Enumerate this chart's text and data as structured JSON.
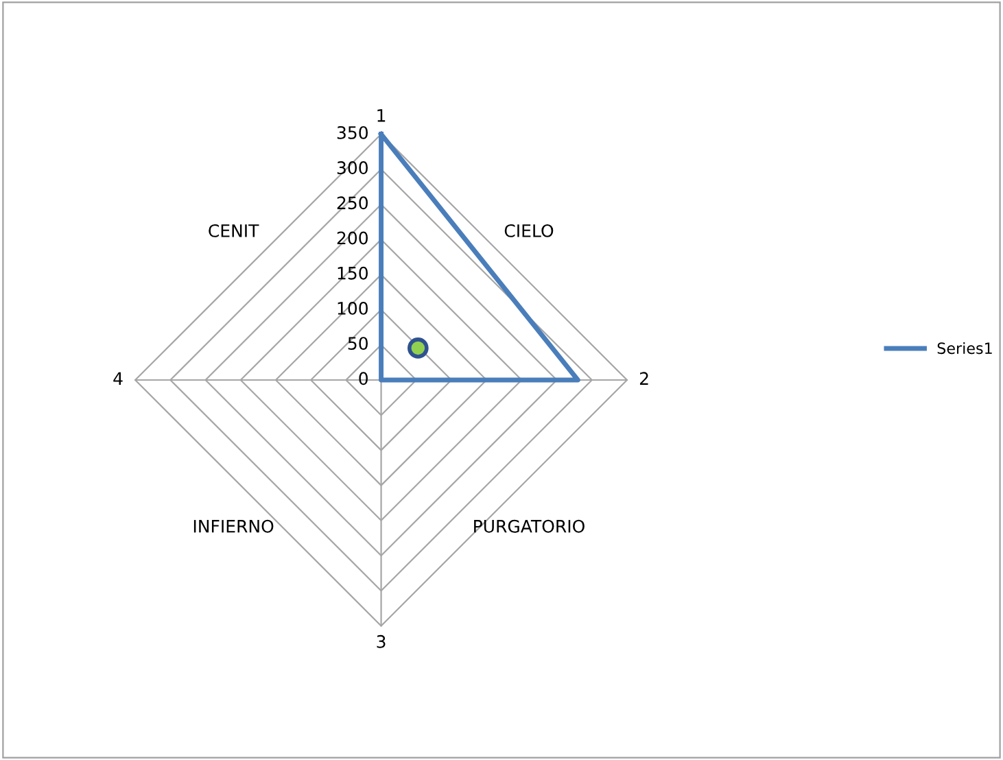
{
  "chart_data": {
    "type": "radar",
    "categories": [
      "1",
      "2",
      "3",
      "4"
    ],
    "series": [
      {
        "name": "Series1",
        "color": "#4a7ebb",
        "values": [
          350,
          280,
          0,
          0
        ]
      }
    ],
    "ylim": [
      0,
      350
    ],
    "yticks": [
      0,
      50,
      100,
      150,
      200,
      250,
      300,
      350
    ],
    "annotations": [
      "CIELO",
      "PURGATORIO",
      "INFIERNO",
      "CENIT"
    ],
    "legend": "right",
    "marker": "none",
    "line_style": "solid",
    "grid": true
  }
}
